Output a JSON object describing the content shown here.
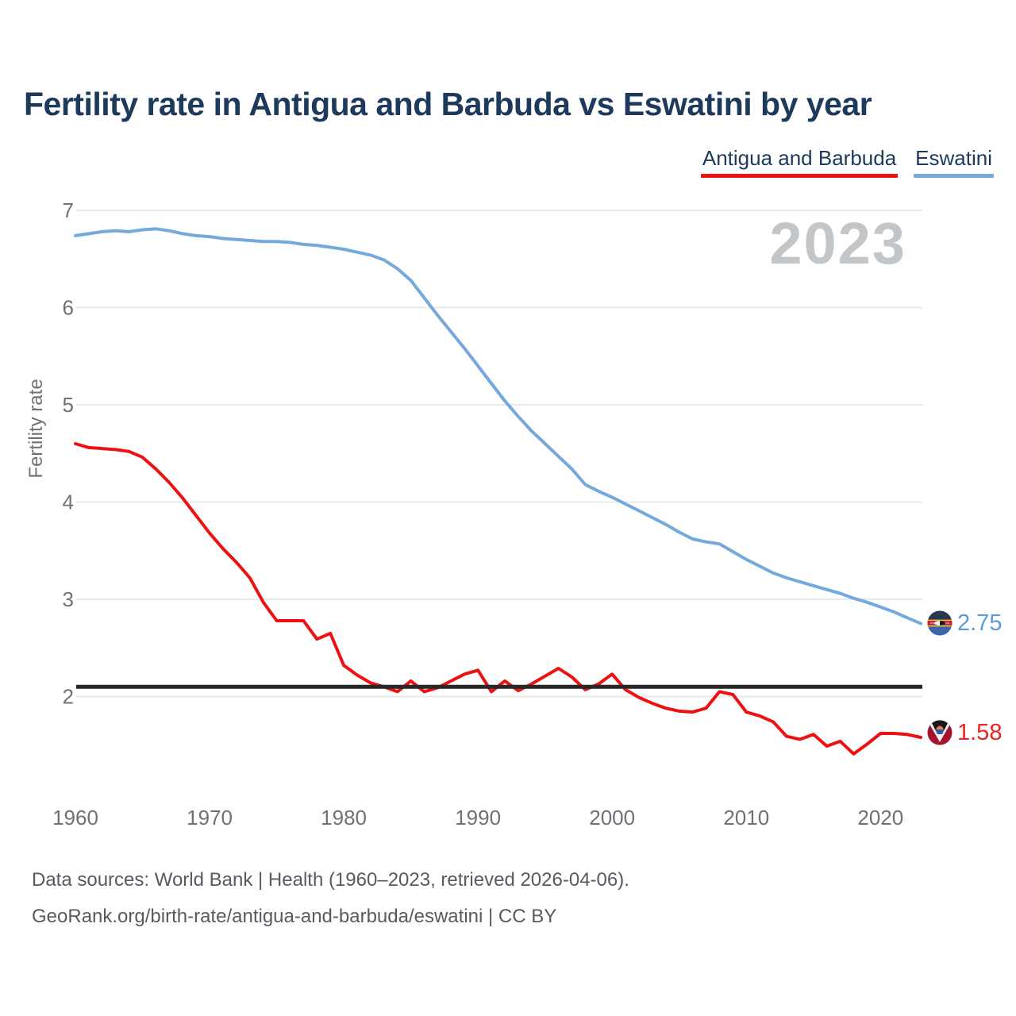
{
  "header": {
    "title": "Fertility rate in Antigua and Barbuda vs Eswatini by year"
  },
  "legend": {
    "items": [
      {
        "label": "Antigua and Barbuda",
        "color": "#ee1111"
      },
      {
        "label": "Eswatini",
        "color": "#74a9de"
      }
    ]
  },
  "chart": {
    "watermark": "2023",
    "y_axis_title": "Fertility rate"
  },
  "end_labels": [
    {
      "series": "Eswatini",
      "value": "2.75",
      "color": "#5d9bd8",
      "flag": "eswatini-flag"
    },
    {
      "series": "Antigua and Barbuda",
      "value": "1.58",
      "color": "#ee2222",
      "flag": "antigua-and-barbuda-flag"
    }
  ],
  "footer": {
    "line1": "Data sources: World Bank | Health (1960–2023, retrieved 2026-04-06).",
    "line2": "GeoRank.org/birth-rate/antigua-and-barbuda/eswatini | CC BY"
  },
  "chart_data": {
    "type": "line",
    "title": "Fertility rate in Antigua and Barbuda vs Eswatini by year",
    "xlabel": "",
    "ylabel": "Fertility rate",
    "x": [
      1960,
      1961,
      1962,
      1963,
      1964,
      1965,
      1966,
      1967,
      1968,
      1969,
      1970,
      1971,
      1972,
      1973,
      1974,
      1975,
      1976,
      1977,
      1978,
      1979,
      1980,
      1981,
      1982,
      1983,
      1984,
      1985,
      1986,
      1987,
      1988,
      1989,
      1990,
      1991,
      1992,
      1993,
      1994,
      1995,
      1996,
      1997,
      1998,
      1999,
      2000,
      2001,
      2002,
      2003,
      2004,
      2005,
      2006,
      2007,
      2008,
      2009,
      2010,
      2011,
      2012,
      2013,
      2014,
      2015,
      2016,
      2017,
      2018,
      2019,
      2020,
      2021,
      2022,
      2023
    ],
    "xticks": [
      1960,
      1970,
      1980,
      1990,
      2000,
      2010,
      2020
    ],
    "yticks": [
      2,
      3,
      4,
      5,
      6,
      7
    ],
    "ylim": [
      1.3,
      7.1
    ],
    "grid": true,
    "legend_position": "top-right",
    "reference_line": {
      "value": 2.1,
      "color": "#272727"
    },
    "series": [
      {
        "name": "Eswatini",
        "color": "#74a9de",
        "end_value": 2.75,
        "values": [
          6.74,
          6.76,
          6.78,
          6.79,
          6.78,
          6.8,
          6.81,
          6.79,
          6.76,
          6.74,
          6.73,
          6.71,
          6.7,
          6.69,
          6.68,
          6.68,
          6.67,
          6.65,
          6.64,
          6.62,
          6.6,
          6.57,
          6.54,
          6.49,
          6.4,
          6.28,
          6.1,
          5.92,
          5.75,
          5.58,
          5.4,
          5.22,
          5.04,
          4.88,
          4.73,
          4.6,
          4.47,
          4.34,
          4.18,
          4.11,
          4.05,
          3.98,
          3.91,
          3.84,
          3.77,
          3.69,
          3.62,
          3.59,
          3.57,
          3.49,
          3.41,
          3.34,
          3.27,
          3.22,
          3.18,
          3.14,
          3.1,
          3.06,
          3.01,
          2.97,
          2.92,
          2.87,
          2.81,
          2.75
        ]
      },
      {
        "name": "Antigua and Barbuda",
        "color": "#ee1111",
        "end_value": 1.58,
        "values": [
          4.6,
          4.56,
          4.55,
          4.54,
          4.52,
          4.46,
          4.34,
          4.2,
          4.04,
          3.86,
          3.68,
          3.52,
          3.38,
          3.22,
          2.97,
          2.78,
          2.78,
          2.78,
          2.59,
          2.65,
          2.32,
          2.22,
          2.14,
          2.1,
          2.05,
          2.16,
          2.05,
          2.09,
          2.16,
          2.23,
          2.27,
          2.05,
          2.16,
          2.06,
          2.13,
          2.21,
          2.29,
          2.2,
          2.07,
          2.13,
          2.23,
          2.07,
          1.99,
          1.93,
          1.88,
          1.85,
          1.84,
          1.88,
          2.05,
          2.02,
          1.84,
          1.8,
          1.74,
          1.59,
          1.56,
          1.61,
          1.49,
          1.54,
          1.41,
          1.51,
          1.62,
          1.62,
          1.61,
          1.58
        ]
      }
    ]
  }
}
